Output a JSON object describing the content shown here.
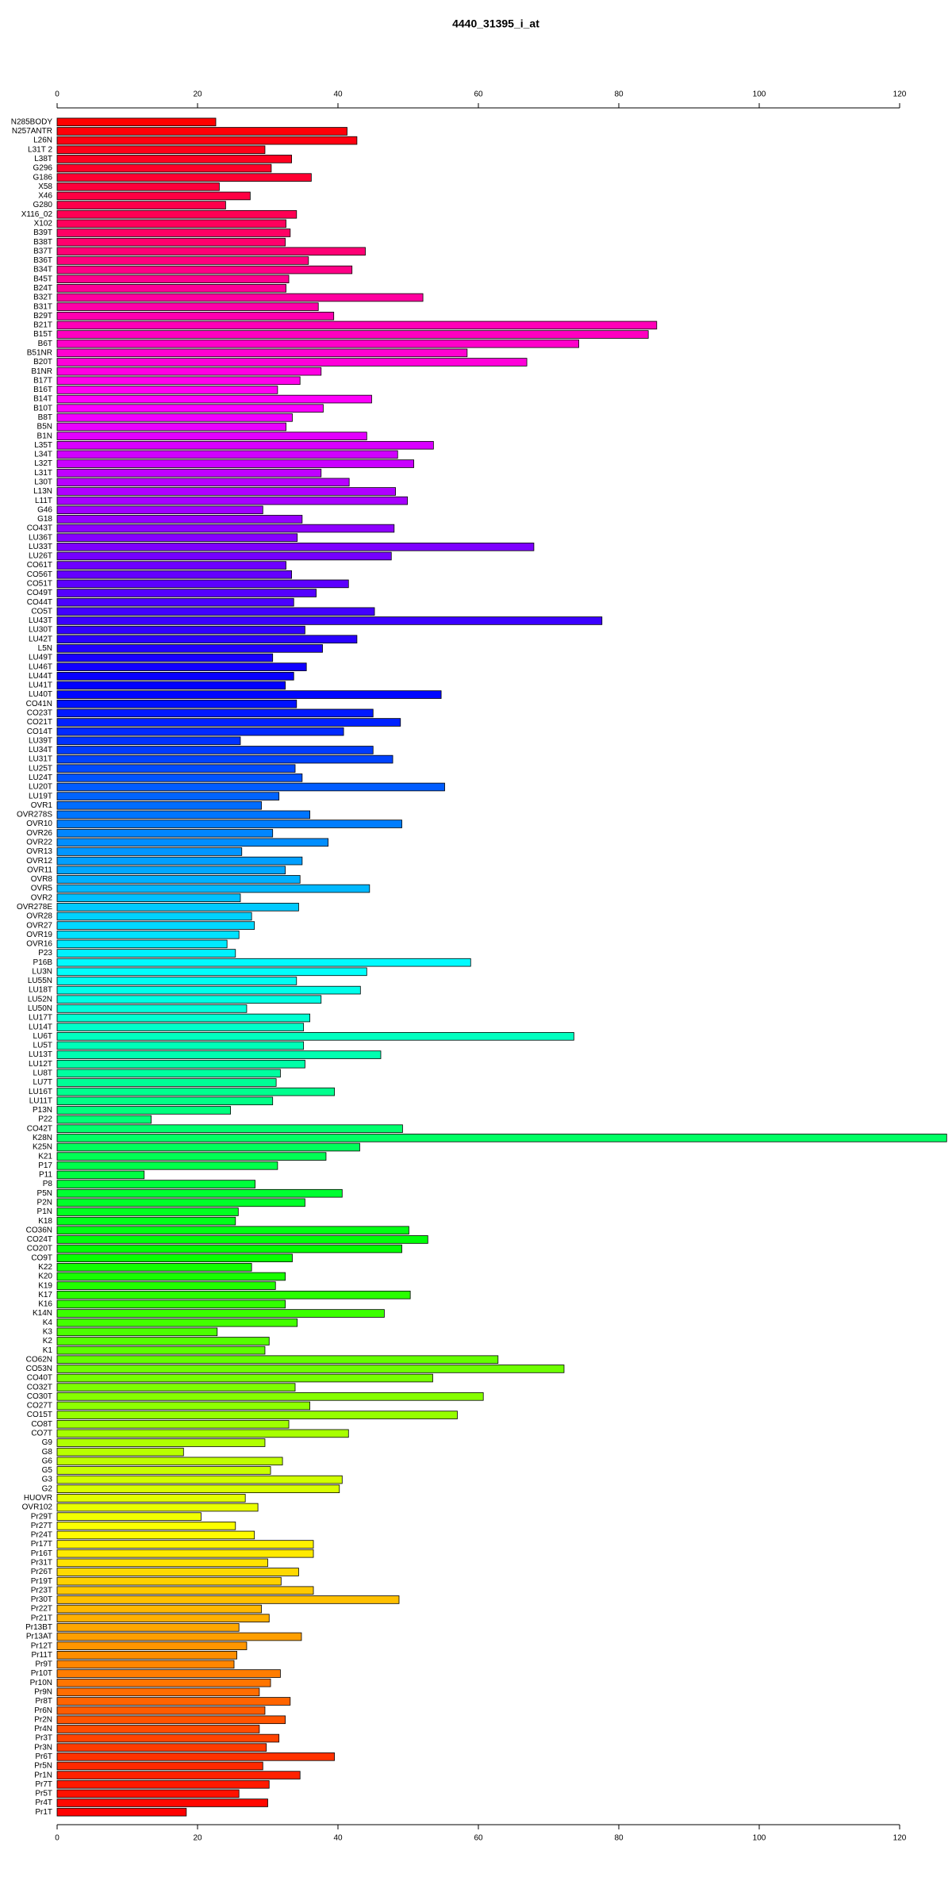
{
  "chart_data": {
    "type": "bar",
    "orientation": "horizontal",
    "title": "4440_31395_i_at",
    "categories": [
      "N285BODY",
      "N257ANTR",
      "L26N",
      "L31T 2",
      "L38T",
      "G296",
      "G186",
      "X58",
      "X46",
      "G280",
      "X116_02",
      "X102",
      "B39T",
      "B38T",
      "B37T",
      "B36T",
      "B34T",
      "B45T",
      "B24T",
      "B32T",
      "B31T",
      "B29T",
      "B21T",
      "B15T",
      "B6T",
      "B51NR",
      "B20T",
      "B1NR",
      "B17T",
      "B16T",
      "B14T",
      "B10T",
      "B8T",
      "B5N",
      "B1N",
      "L35T",
      "L34T",
      "L32T",
      "L31T",
      "L30T",
      "L13N",
      "L11T",
      "G46",
      "G18",
      "CO43T",
      "LU36T",
      "LU33T",
      "LU26T",
      "CO61T",
      "CO56T",
      "CO51T",
      "CO49T",
      "CO44T",
      "CO5T",
      "LU43T",
      "LU30T",
      "LU42T",
      "L5N",
      "LU49T",
      "LU46T",
      "LU44T",
      "LU41T",
      "LU40T",
      "CO41N",
      "CO23T",
      "CO21T",
      "CO14T",
      "LU39T",
      "LU34T",
      "LU31T",
      "LU25T",
      "LU24T",
      "LU20T",
      "LU19T",
      "OVR1",
      "OVR278S",
      "OVR10",
      "OVR26",
      "OVR22",
      "OVR13",
      "OVR12",
      "OVR11",
      "OVR8",
      "OVR5",
      "OVR2",
      "OVR278E",
      "OVR28",
      "OVR27",
      "OVR19",
      "OVR16",
      "P23",
      "P16B",
      "LU3N",
      "LU55N",
      "LU18T",
      "LU52N",
      "LU50N",
      "LU17T",
      "LU14T",
      "LU6T",
      "LU5T",
      "LU13T",
      "LU12T",
      "LU8T",
      "LU7T",
      "LU16T",
      "LU11T",
      "P13N",
      "P22",
      "CO42T",
      "K28N",
      "K25N",
      "K21",
      "P17",
      "P11",
      "P8",
      "P5N",
      "P2N",
      "P1N",
      "K18",
      "CO36N",
      "CO24T",
      "CO20T",
      "CO9T",
      "K22",
      "K20",
      "K19",
      "K17",
      "K16",
      "K14N",
      "K4",
      "K3",
      "K2",
      "K1",
      "CO62N",
      "CO53N",
      "CO40T",
      "CO32T",
      "CO30T",
      "CO27T",
      "CO15T",
      "CO8T",
      "CO7T",
      "G9",
      "G8",
      "G6",
      "G5",
      "G3",
      "G2",
      "HUOVR",
      "OVR102",
      "Pr29T",
      "Pr27T",
      "Pr24T",
      "Pr17T",
      "Pr16T",
      "Pr31T",
      "Pr26T",
      "Pr19T",
      "Pr23T",
      "Pr30T",
      "Pr22T",
      "Pr21T",
      "Pr13BT",
      "Pr13AT",
      "Pr12T",
      "Pr11T",
      "Pr9T",
      "Pr10T",
      "Pr10N",
      "Pr9N",
      "Pr8T",
      "Pr6N",
      "Pr2N",
      "Pr4N",
      "Pr3T",
      "Pr3N",
      "Pr6T",
      "Pr5N",
      "Pr1N",
      "Pr7T",
      "Pr5T",
      "Pr4T",
      "Pr1T"
    ],
    "values": [
      22.6,
      41.3,
      42.7,
      29.6,
      33.4,
      30.5,
      36.2,
      23.1,
      27.5,
      24.0,
      34.1,
      32.6,
      33.2,
      32.5,
      43.9,
      35.8,
      42.0,
      33.0,
      32.6,
      52.1,
      37.2,
      39.4,
      85.4,
      84.2,
      74.3,
      58.4,
      66.9,
      37.6,
      34.6,
      31.4,
      44.8,
      37.9,
      33.5,
      32.6,
      44.1,
      53.6,
      48.5,
      50.8,
      37.6,
      41.6,
      48.2,
      49.9,
      29.3,
      34.9,
      48.0,
      34.2,
      67.9,
      47.6,
      32.6,
      33.4,
      41.5,
      36.9,
      33.7,
      45.2,
      77.6,
      35.3,
      42.7,
      37.8,
      30.7,
      35.5,
      33.7,
      32.5,
      54.7,
      34.1,
      45.0,
      48.9,
      40.8,
      26.1,
      45.0,
      47.8,
      33.9,
      34.9,
      55.2,
      31.6,
      29.1,
      36.0,
      49.1,
      30.7,
      38.6,
      26.3,
      34.9,
      32.5,
      34.6,
      44.5,
      26.1,
      34.4,
      27.7,
      28.1,
      25.9,
      24.2,
      25.4,
      58.9,
      44.1,
      34.1,
      43.2,
      37.6,
      27.0,
      36.0,
      35.1,
      73.6,
      35.1,
      46.1,
      35.3,
      31.8,
      31.2,
      39.5,
      30.7,
      24.7,
      13.4,
      49.2,
      126.7,
      43.1,
      38.3,
      31.4,
      12.4,
      28.2,
      40.6,
      35.3,
      25.8,
      25.4,
      50.1,
      52.8,
      49.1,
      33.5,
      27.7,
      32.5,
      31.1,
      50.3,
      32.5,
      46.6,
      34.2,
      22.8,
      30.2,
      29.6,
      62.8,
      72.2,
      53.5,
      33.9,
      60.7,
      36.0,
      57.0,
      33.0,
      41.5,
      29.6,
      18.0,
      32.1,
      30.4,
      40.6,
      40.2,
      26.8,
      28.6,
      20.5,
      25.4,
      28.1,
      36.5,
      36.5,
      30.0,
      34.4,
      31.9,
      36.5,
      48.7,
      29.1,
      30.2,
      25.9,
      34.8,
      27.0,
      25.6,
      25.2,
      31.8,
      30.4,
      28.8,
      33.2,
      29.6,
      32.5,
      28.8,
      31.6,
      29.8,
      39.5,
      29.3,
      34.6,
      30.2,
      25.9,
      30.0,
      18.4
    ],
    "color_stops": [
      "#ff0000",
      "#ff00ff",
      "#0000ff",
      "#00ffff",
      "#00ff00",
      "#ffff00",
      "#ff0000"
    ],
    "xlim": [
      0,
      120
    ],
    "xticks": [
      0,
      20,
      40,
      60,
      80,
      100,
      120
    ]
  }
}
